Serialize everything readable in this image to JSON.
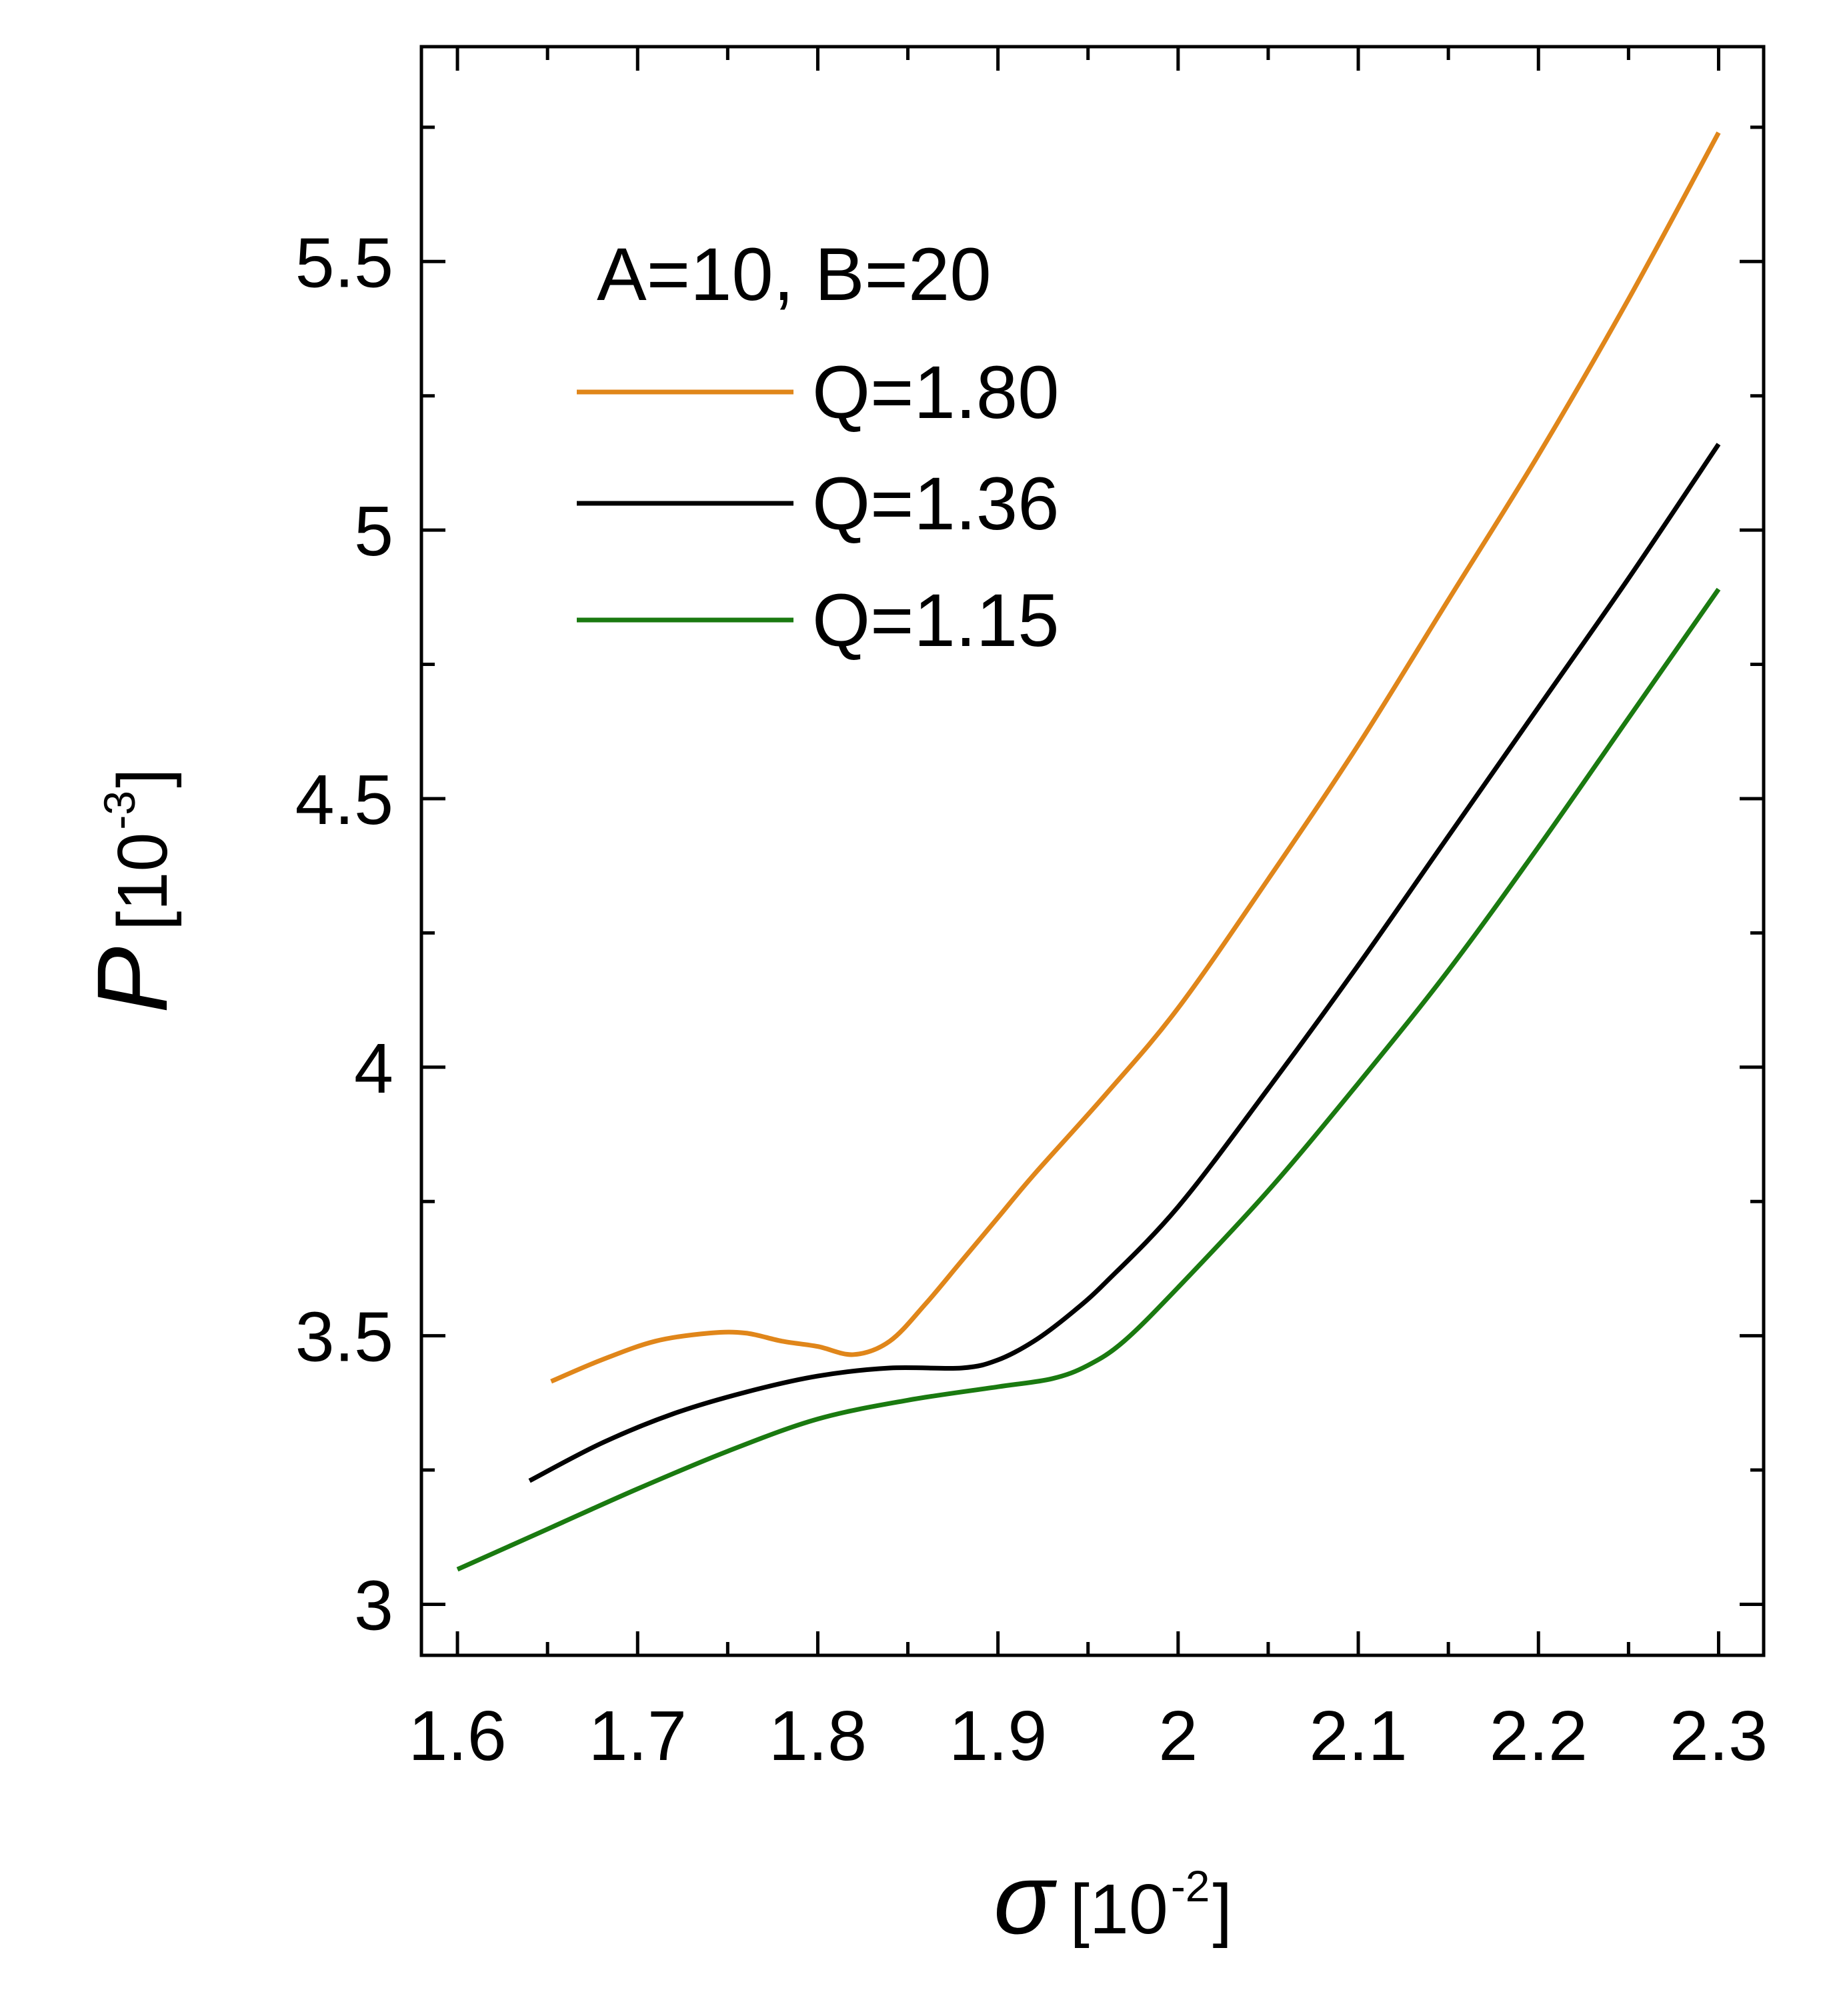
{
  "chart_data": {
    "type": "line",
    "title": "",
    "xlabel": {
      "symbol": "σ",
      "unit_open": "[10",
      "unit_exp": "-2",
      "unit_close": "]"
    },
    "ylabel": {
      "symbol": "P",
      "unit_open": "[10",
      "unit_exp": "-3",
      "unit_close": "]"
    },
    "xlim": [
      1.58,
      2.325
    ],
    "ylim": [
      2.905,
      5.9
    ],
    "x_ticks": [
      1.6,
      1.7,
      1.8,
      1.9,
      2.0,
      2.1,
      2.2,
      2.3
    ],
    "x_tick_labels": [
      "1.6",
      "1.7",
      "1.8",
      "1.9",
      "2",
      "2.1",
      "2.2",
      "2.3"
    ],
    "x_minor_ticks": [
      1.65,
      1.75,
      1.85,
      1.95,
      2.05,
      2.15,
      2.25
    ],
    "y_ticks": [
      3.0,
      3.5,
      4.0,
      4.5,
      5.0,
      5.5
    ],
    "y_tick_labels": [
      "3",
      "3.5",
      "4",
      "4.5",
      "5",
      "5.5"
    ],
    "y_minor_ticks": [
      3.25,
      3.75,
      4.25,
      4.75,
      5.25,
      5.75
    ],
    "grid": false,
    "legend": {
      "title": "A=10, B=20",
      "placement": "top-left",
      "entries": [
        "Q=1.80",
        "Q=1.36",
        "Q=1.15"
      ]
    },
    "series": [
      {
        "name": "Q=1.80",
        "color": "#E0861A",
        "x": [
          1.652,
          1.68,
          1.71,
          1.74,
          1.76,
          1.78,
          1.8,
          1.82,
          1.84,
          1.86,
          1.88,
          1.9,
          1.92,
          1.96,
          2.0,
          2.05,
          2.1,
          2.15,
          2.2,
          2.25,
          2.3
        ],
        "y": [
          3.415,
          3.455,
          3.49,
          3.505,
          3.505,
          3.49,
          3.48,
          3.465,
          3.49,
          3.56,
          3.64,
          3.72,
          3.8,
          3.95,
          4.11,
          4.35,
          4.6,
          4.87,
          5.14,
          5.43,
          5.74
        ]
      },
      {
        "name": "Q=1.36",
        "color": "#000000",
        "x": [
          1.64,
          1.68,
          1.72,
          1.76,
          1.8,
          1.84,
          1.88,
          1.9,
          1.92,
          1.94,
          1.96,
          2.0,
          2.05,
          2.1,
          2.15,
          2.2,
          2.25,
          2.3
        ],
        "y": [
          3.23,
          3.3,
          3.355,
          3.395,
          3.425,
          3.44,
          3.44,
          3.455,
          3.49,
          3.54,
          3.6,
          3.74,
          3.96,
          4.19,
          4.43,
          4.67,
          4.91,
          5.16
        ]
      },
      {
        "name": "Q=1.15",
        "color": "#1A7A10",
        "x": [
          1.6,
          1.65,
          1.7,
          1.75,
          1.8,
          1.85,
          1.9,
          1.93,
          1.95,
          1.97,
          2.0,
          2.05,
          2.1,
          2.15,
          2.2,
          2.25,
          2.3
        ],
        "y": [
          3.065,
          3.14,
          3.215,
          3.285,
          3.345,
          3.38,
          3.405,
          3.42,
          3.445,
          3.49,
          3.59,
          3.77,
          3.97,
          4.18,
          4.41,
          4.65,
          4.89
        ]
      }
    ]
  }
}
